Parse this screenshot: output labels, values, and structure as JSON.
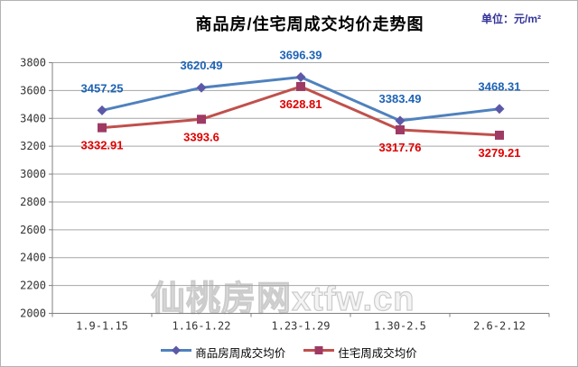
{
  "title": "商品房/住宅周成交均价走势图",
  "unit_label": "单位：元/m²",
  "watermark": "仙桃房网xtfw.cn",
  "chart_data": {
    "type": "line",
    "title": "商品房/住宅周成交均价走势图",
    "unit": "元/m²",
    "categories": [
      "1.9-1.15",
      "1.16-1.22",
      "1.23-1.29",
      "1.30-2.5",
      "2.6-2.12"
    ],
    "series": [
      {
        "name": "商品房周成交均价",
        "values": [
          3457.25,
          3620.49,
          3696.39,
          3383.49,
          3468.31
        ],
        "line_color": "#4F81BD",
        "marker": "diamond",
        "marker_color": "#5B59A8",
        "label_color": "#1D63B5",
        "label_baseline_offset": -20
      },
      {
        "name": "住宅周成交均价",
        "values": [
          3332.91,
          3393.6,
          3628.81,
          3317.76,
          3279.21
        ],
        "line_color": "#C0504D",
        "marker": "square",
        "marker_color": "#9E3A64",
        "label_color": "#E00000",
        "label_baseline_offset": 24
      }
    ],
    "ylim": [
      2000,
      3800
    ],
    "ytick_step": 200,
    "grid": true,
    "legend_position": "bottom",
    "colors": {
      "gridline": "#A6A6A6",
      "axis": "#808080",
      "tick_label": "#333333"
    }
  }
}
